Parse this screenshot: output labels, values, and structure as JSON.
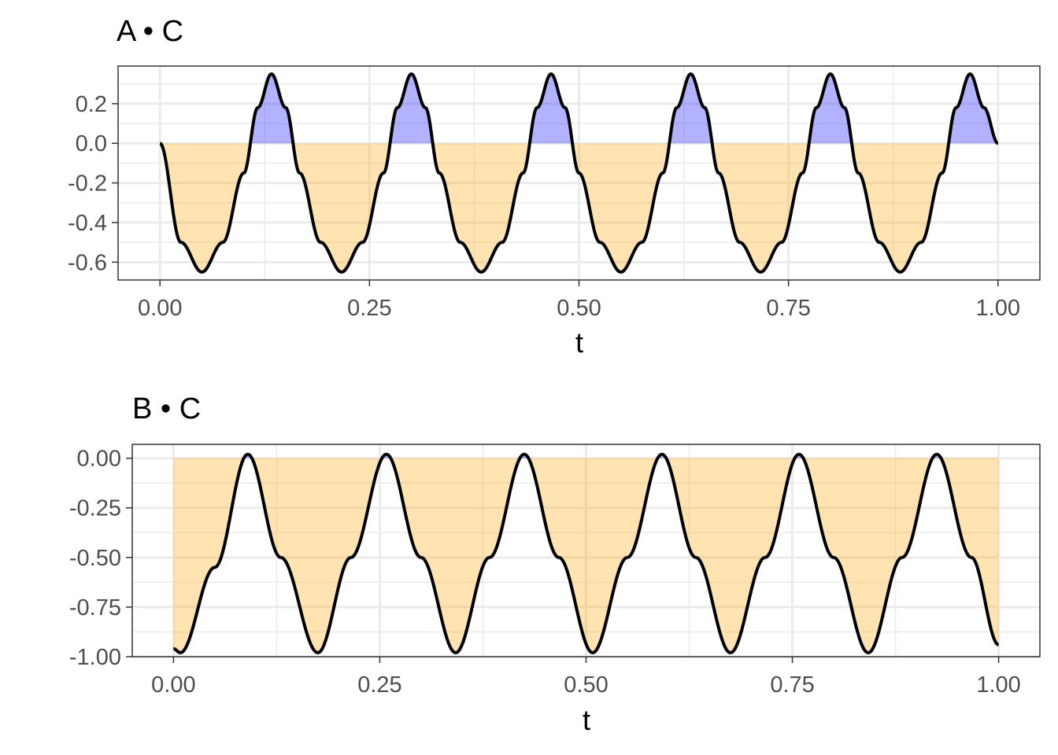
{
  "colors": {
    "positive_fill": "#0000ff",
    "negative_fill": "#ffa500",
    "line": "#000000",
    "panel_border": "#333333",
    "grid": "#ebebeb"
  },
  "chart_data": [
    {
      "type": "area",
      "title": "A • C",
      "xlabel": "t",
      "ylabel": "",
      "xlim": [
        -0.05,
        1.05
      ],
      "ylim": [
        -0.69,
        0.39
      ],
      "x_ticks": [
        0.0,
        0.25,
        0.5,
        0.75,
        1.0
      ],
      "x_tick_labels": [
        "0.00",
        "0.25",
        "0.50",
        "0.75",
        "1.00"
      ],
      "y_ticks": [
        0.2,
        0.0,
        -0.2,
        -0.4,
        -0.6
      ],
      "y_tick_labels": [
        "0.2",
        "0.0",
        "-0.2",
        "-0.4",
        "-0.6"
      ],
      "grid": true,
      "fill_above_zero": "blue",
      "fill_below_zero": "orange",
      "series": [
        {
          "x": [
            0.0,
            0.025,
            0.05,
            0.075,
            0.1,
            0.1167,
            0.133,
            0.15,
            0.1667,
            0.1917,
            0.2167,
            0.2417,
            0.2667,
            0.2833,
            0.3,
            0.3167,
            0.3333,
            0.3583,
            0.3833,
            0.4083,
            0.4333,
            0.45,
            0.4667,
            0.4833,
            0.5,
            0.525,
            0.55,
            0.575,
            0.6,
            0.6167,
            0.6333,
            0.65,
            0.6667,
            0.6917,
            0.7167,
            0.7417,
            0.7667,
            0.7833,
            0.8,
            0.8167,
            0.8333,
            0.8583,
            0.8833,
            0.9083,
            0.9333,
            0.95,
            0.9667,
            0.9833,
            1.0
          ],
          "y": [
            0.0,
            -0.5,
            -0.65,
            -0.5,
            -0.15,
            0.18,
            0.35,
            0.18,
            -0.15,
            -0.5,
            -0.65,
            -0.5,
            -0.15,
            0.18,
            0.35,
            0.18,
            -0.15,
            -0.5,
            -0.65,
            -0.5,
            -0.15,
            0.18,
            0.35,
            0.18,
            -0.15,
            -0.5,
            -0.65,
            -0.5,
            -0.15,
            0.18,
            0.35,
            0.18,
            -0.15,
            -0.5,
            -0.65,
            -0.5,
            -0.15,
            0.18,
            0.35,
            0.18,
            -0.15,
            -0.5,
            -0.65,
            -0.5,
            -0.15,
            0.18,
            0.35,
            0.18,
            0.0
          ]
        }
      ]
    },
    {
      "type": "area",
      "title": "B • C",
      "xlabel": "t",
      "ylabel": "",
      "xlim": [
        -0.05,
        1.05
      ],
      "ylim": [
        -1.0,
        0.07
      ],
      "x_ticks": [
        0.0,
        0.25,
        0.5,
        0.75,
        1.0
      ],
      "x_tick_labels": [
        "0.00",
        "0.25",
        "0.50",
        "0.75",
        "1.00"
      ],
      "y_ticks": [
        0.0,
        -0.25,
        -0.5,
        -0.75,
        -1.0
      ],
      "y_tick_labels": [
        "0.00",
        "-0.25",
        "-0.50",
        "-0.75",
        "-1.00"
      ],
      "grid": true,
      "fill_above_zero": "blue",
      "fill_below_zero": "orange",
      "series": [
        {
          "x": [
            0.0,
            0.0083,
            0.05,
            0.09,
            0.13,
            0.175,
            0.215,
            0.258,
            0.3,
            0.342,
            0.383,
            0.425,
            0.467,
            0.508,
            0.55,
            0.592,
            0.633,
            0.675,
            0.717,
            0.758,
            0.8,
            0.842,
            0.883,
            0.925,
            0.967,
            1.0
          ],
          "y": [
            -0.96,
            -0.98,
            -0.55,
            0.02,
            -0.5,
            -0.98,
            -0.5,
            0.02,
            -0.5,
            -0.98,
            -0.5,
            0.02,
            -0.5,
            -0.98,
            -0.5,
            0.02,
            -0.5,
            -0.98,
            -0.5,
            0.02,
            -0.5,
            -0.98,
            -0.5,
            0.02,
            -0.5,
            -0.94
          ]
        }
      ]
    }
  ]
}
